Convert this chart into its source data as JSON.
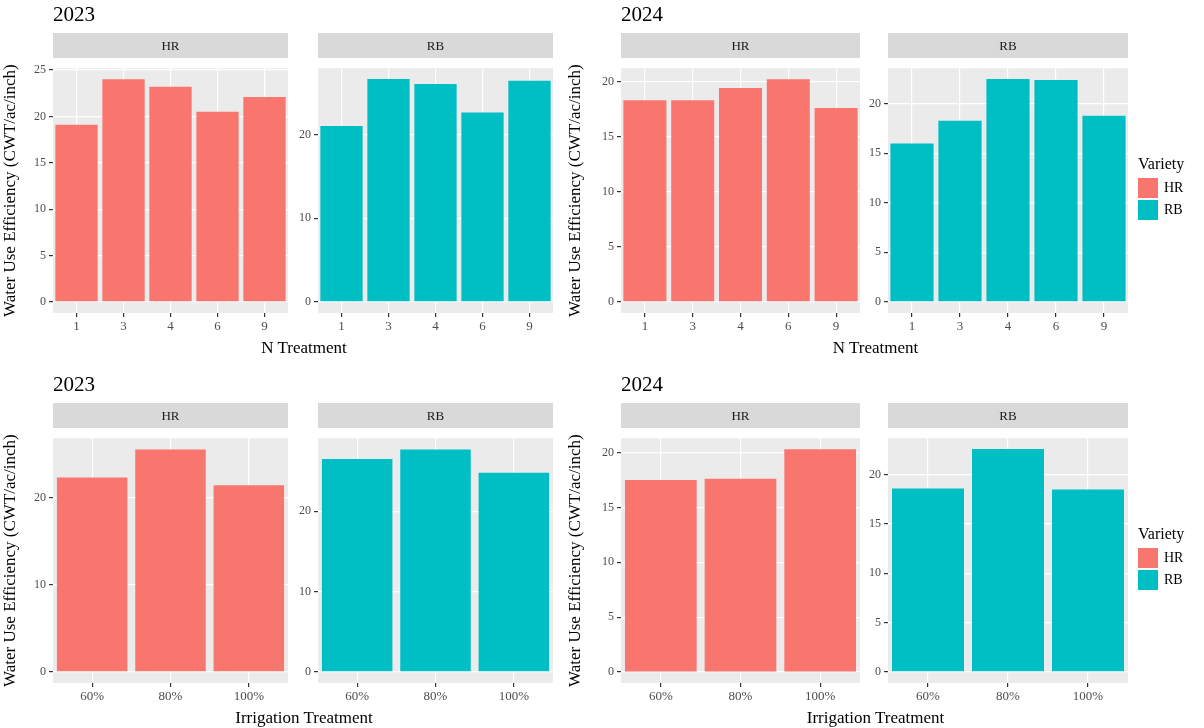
{
  "chart_data": [
    {
      "type": "bar",
      "title": "2023",
      "subtitle": "HR",
      "ylabel": "Water Use Efficiency (CWT/ac/inch)",
      "xlabel": "N Treatment",
      "categories": [
        "1",
        "3",
        "4",
        "6",
        "9"
      ],
      "series": [
        {
          "color": "#f8766d",
          "values": [
            19.1,
            24.0,
            23.2,
            20.5,
            22.1
          ]
        }
      ],
      "ylim": [
        -1.2,
        25.2
      ],
      "yticks": [
        0,
        5,
        10,
        15,
        20,
        25
      ],
      "grid": true
    },
    {
      "type": "bar",
      "subtitle": "RB",
      "categories": [
        "1",
        "3",
        "4",
        "6",
        "9"
      ],
      "series": [
        {
          "color": "#00bfc4",
          "values": [
            21.0,
            26.6,
            26.0,
            22.6,
            26.4
          ]
        }
      ],
      "ylim": [
        -1.33,
        27.9
      ],
      "yticks": [
        0,
        10,
        20
      ],
      "grid": true
    },
    {
      "type": "bar",
      "title": "2024",
      "subtitle": "HR",
      "ylabel": "Water Use Efficiency (CWT/ac/inch)",
      "xlabel": "N Treatment",
      "categories": [
        "1",
        "3",
        "4",
        "6",
        "9"
      ],
      "series": [
        {
          "name": "HR",
          "color": "#f8766d",
          "values": [
            18.3,
            18.3,
            19.4,
            20.2,
            17.6
          ]
        }
      ],
      "ylim": [
        -1.0,
        21.2
      ],
      "yticks": [
        0,
        5,
        10,
        15,
        20
      ],
      "grid": true
    },
    {
      "type": "bar",
      "subtitle": "RB",
      "categories": [
        "1",
        "3",
        "4",
        "6",
        "9"
      ],
      "series": [
        {
          "name": "RB",
          "color": "#00bfc4",
          "values": [
            16.0,
            18.3,
            22.5,
            22.4,
            18.8
          ]
        }
      ],
      "ylim": [
        -1.13,
        23.6
      ],
      "yticks": [
        0,
        5,
        10,
        15,
        20
      ],
      "grid": true,
      "legend": "right",
      "legend_title": "Variety"
    },
    {
      "type": "bar",
      "title": "2023",
      "subtitle": "HR",
      "ylabel": "Water Use Efficiency (CWT/ac/inch)",
      "xlabel": "Irrigation Treatment",
      "categories": [
        "60%",
        "80%",
        "100%"
      ],
      "series": [
        {
          "color": "#f8766d",
          "values": [
            22.3,
            25.5,
            21.4
          ]
        }
      ],
      "ylim": [
        -1.28,
        26.8
      ],
      "yticks": [
        0,
        10,
        20
      ],
      "grid": true
    },
    {
      "type": "bar",
      "subtitle": "RB",
      "categories": [
        "60%",
        "80%",
        "100%"
      ],
      "series": [
        {
          "color": "#00bfc4",
          "values": [
            26.5,
            27.7,
            24.8
          ]
        }
      ],
      "ylim": [
        -1.39,
        29.1
      ],
      "yticks": [
        0,
        10,
        20
      ],
      "grid": true
    },
    {
      "type": "bar",
      "title": "2024",
      "subtitle": "HR",
      "ylabel": "Water Use Efficiency (CWT/ac/inch)",
      "xlabel": "Irrigation Treatment",
      "categories": [
        "60%",
        "80%",
        "100%"
      ],
      "series": [
        {
          "name": "HR",
          "color": "#f8766d",
          "values": [
            17.5,
            17.6,
            20.3
          ]
        }
      ],
      "ylim": [
        -1.0,
        21.3
      ],
      "yticks": [
        0,
        5,
        10,
        15,
        20
      ],
      "grid": true
    },
    {
      "type": "bar",
      "subtitle": "RB",
      "categories": [
        "60%",
        "80%",
        "100%"
      ],
      "series": [
        {
          "name": "RB",
          "color": "#00bfc4",
          "values": [
            18.6,
            22.6,
            18.5
          ]
        }
      ],
      "ylim": [
        -1.13,
        23.7
      ],
      "yticks": [
        0,
        5,
        10,
        15,
        20
      ],
      "grid": true,
      "legend": "right",
      "legend_title": "Variety"
    }
  ]
}
